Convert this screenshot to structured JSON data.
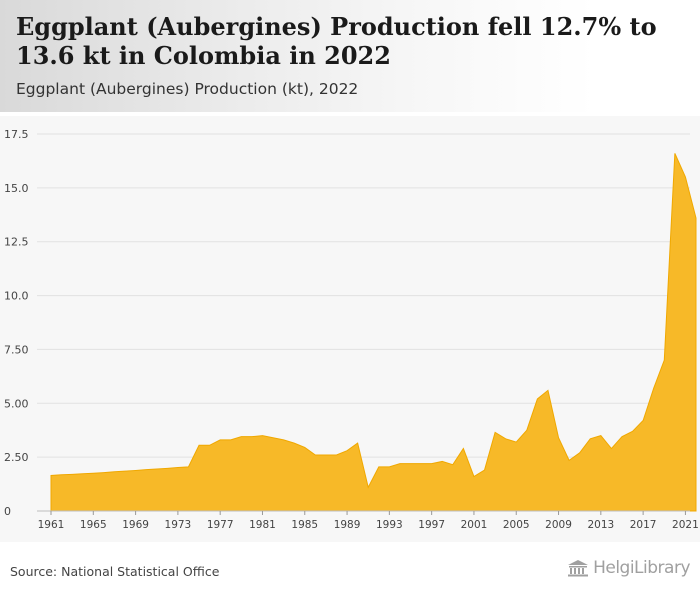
{
  "header": {
    "title": "Eggplant (Aubergines) Production fell 12.7% to 13.6 kt in Colombia in 2022",
    "subtitle": "Eggplant (Aubergines) Production (kt), 2022"
  },
  "footer": {
    "source": "Source: National Statistical Office",
    "logo_text": "HelgiLibrary"
  },
  "colors": {
    "area_fill": "#f7b928",
    "area_stroke": "#f0a800",
    "grid": "#e2e2e2",
    "axis_text": "#444444"
  },
  "chart_data": {
    "type": "area",
    "title": "Eggplant (Aubergines) Production (kt), 2022",
    "xlabel": "",
    "ylabel": "",
    "grid": true,
    "xlim": [
      1961,
      2022
    ],
    "ylim": [
      0,
      17.5
    ],
    "y_ticks": [
      0,
      2.5,
      5.0,
      7.5,
      10.0,
      12.5,
      15.0,
      17.5
    ],
    "y_tick_labels": [
      "0",
      "2.50",
      "5.00",
      "7.50",
      "10.0",
      "12.5",
      "15.0",
      "17.5"
    ],
    "x_ticks": [
      1961,
      1965,
      1969,
      1973,
      1977,
      1981,
      1985,
      1989,
      1993,
      1997,
      2001,
      2005,
      2009,
      2013,
      2017,
      2021
    ],
    "x_tick_labels": [
      "1961",
      "1965",
      "1969",
      "1973",
      "1977",
      "1981",
      "1985",
      "1989",
      "1993",
      "1997",
      "2001",
      "2005",
      "2009",
      "2013",
      "2017",
      "2021"
    ],
    "series": [
      {
        "x": [
          1961,
          1962,
          1963,
          1964,
          1965,
          1966,
          1967,
          1968,
          1969,
          1970,
          1971,
          1972,
          1973,
          1974,
          1975,
          1976,
          1977,
          1978,
          1979,
          1980,
          1981,
          1982,
          1983,
          1984,
          1985,
          1986,
          1987,
          1988,
          1989,
          1990,
          1991,
          1992,
          1993,
          1994,
          1995,
          1996,
          1997,
          1998,
          1999,
          2000,
          2001,
          2002,
          2003,
          2004,
          2005,
          2006,
          2007,
          2008,
          2009,
          2010,
          2011,
          2012,
          2013,
          2014,
          2015,
          2016,
          2017,
          2018,
          2019,
          2020,
          2021,
          2022
        ],
        "values": [
          1.65,
          1.68,
          1.7,
          1.73,
          1.75,
          1.78,
          1.82,
          1.85,
          1.88,
          1.92,
          1.95,
          1.98,
          2.02,
          2.05,
          3.05,
          3.05,
          3.3,
          3.3,
          3.45,
          3.45,
          3.5,
          3.4,
          3.3,
          3.15,
          2.95,
          2.6,
          2.6,
          2.6,
          2.8,
          3.15,
          1.1,
          2.05,
          2.05,
          2.2,
          2.2,
          2.2,
          2.2,
          2.3,
          2.15,
          2.9,
          1.6,
          1.9,
          3.65,
          3.35,
          3.2,
          3.75,
          5.2,
          5.6,
          3.4,
          2.35,
          2.7,
          3.35,
          3.5,
          2.9,
          3.45,
          3.7,
          4.2,
          5.7,
          7.0,
          16.6,
          15.5,
          13.6
        ]
      }
    ]
  }
}
